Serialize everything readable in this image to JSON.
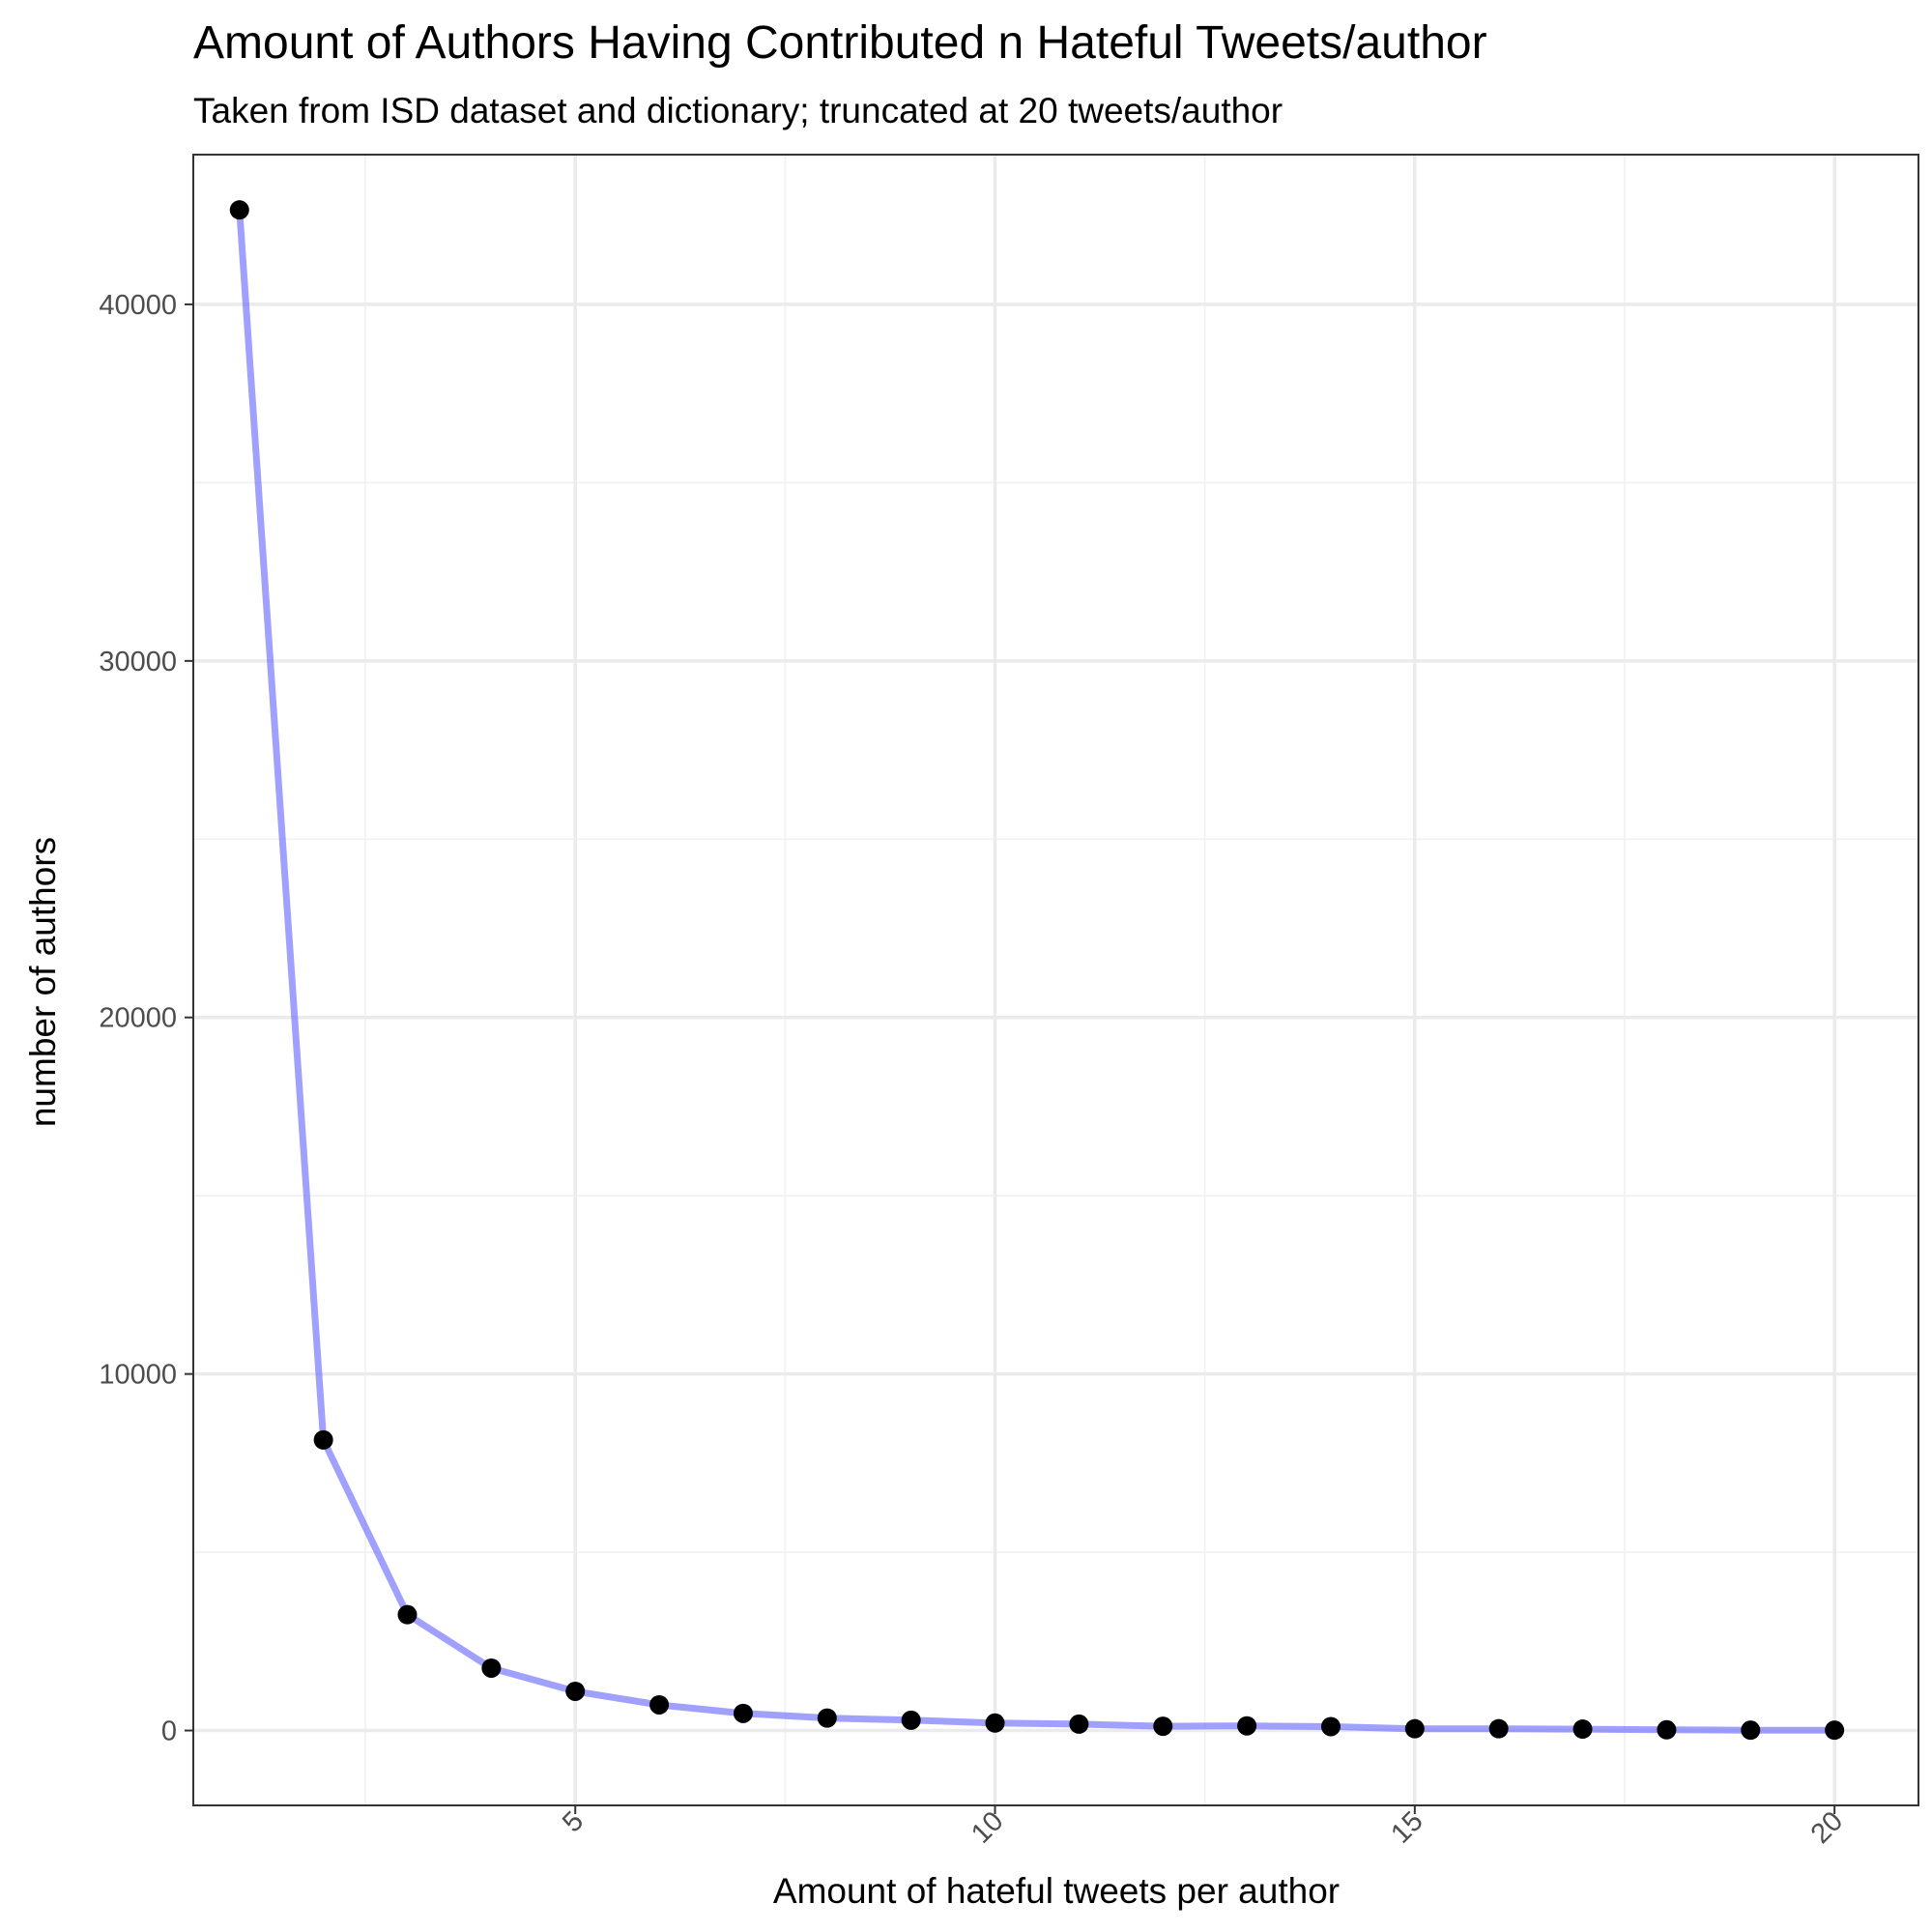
{
  "chart_data": {
    "type": "line",
    "title": "Amount of Authors Having Contributed n Hateful Tweets/author",
    "subtitle": "Taken from ISD dataset and dictionary; truncated at 20 tweets/author",
    "xlabel": "Amount of hateful tweets per author",
    "ylabel": "number of authors",
    "x": [
      1,
      2,
      3,
      4,
      5,
      6,
      7,
      8,
      9,
      10,
      11,
      12,
      13,
      14,
      15,
      16,
      17,
      18,
      19,
      20
    ],
    "series": [
      {
        "values": [
          42650,
          8150,
          3250,
          1750,
          1100,
          720,
          480,
          350,
          290,
          210,
          180,
          120,
          130,
          110,
          50,
          50,
          40,
          20,
          10,
          10
        ]
      }
    ],
    "xlim": [
      0.45,
      21.0
    ],
    "ylim": [
      -2100,
      44200
    ],
    "xticks": [
      5,
      10,
      15,
      20
    ],
    "xtick_labels": [
      "5",
      "10",
      "15",
      "20"
    ],
    "xticks_minor": [
      2.5,
      7.5,
      12.5,
      17.5
    ],
    "yticks": [
      0,
      10000,
      20000,
      30000,
      40000
    ],
    "ytick_labels": [
      "0",
      "10000",
      "20000",
      "30000",
      "40000"
    ],
    "yticks_minor": [
      5000,
      15000,
      25000,
      35000
    ],
    "grid": true,
    "legend": "none",
    "theme": "bw",
    "colors": {
      "line": "#6161ff",
      "points": "#000000",
      "grid_major": "#ebebeb",
      "grid_minor": "#f2f2f2",
      "border": "#333333"
    }
  }
}
